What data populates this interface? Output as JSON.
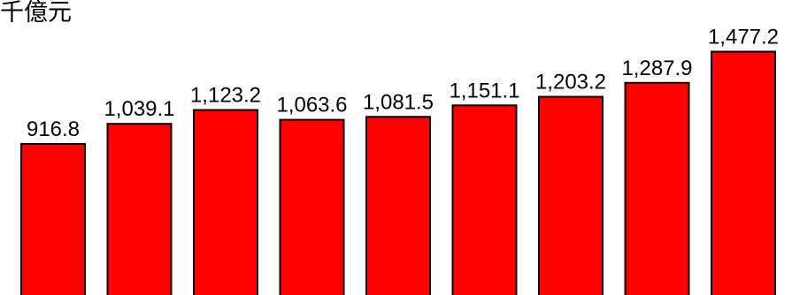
{
  "chart_data": {
    "type": "bar",
    "unit_label": "千億元",
    "categories": [
      "",
      "",
      "",
      "",
      "",
      "",
      "",
      "",
      ""
    ],
    "values": [
      916.8,
      1039.1,
      1123.2,
      1063.6,
      1081.5,
      1151.1,
      1203.2,
      1287.9,
      1477.2
    ],
    "value_labels": [
      "916.8",
      "1,039.1",
      "1,123.2",
      "1,063.6",
      "1,081.5",
      "1,151.1",
      "1,203.2",
      "1,287.9",
      "1,477.2"
    ],
    "bar_color": "#ff0000",
    "bar_border_color": "#000000",
    "ylim": [
      0,
      1500
    ],
    "grid": false,
    "legend": "none"
  }
}
